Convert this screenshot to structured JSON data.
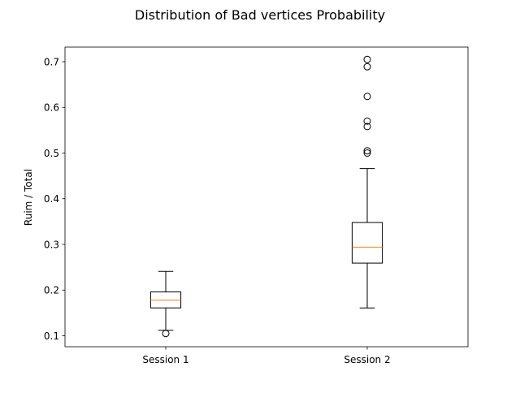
{
  "chart_data": {
    "type": "boxplot",
    "title": "Distribution of Bad vertices Probability",
    "xlabel": "",
    "ylabel": "Ruim / Total",
    "categories": [
      "Session 1",
      "Session 2"
    ],
    "yticks": [
      "0.1",
      "0.2",
      "0.3",
      "0.4",
      "0.5",
      "0.6",
      "0.7"
    ],
    "ylim": [
      0.076,
      0.732
    ],
    "grid": false,
    "legend": "none",
    "series": [
      {
        "whisker_low": 0.112,
        "q1": 0.161,
        "median": 0.178,
        "q3": 0.196,
        "whisker_high": 0.241,
        "outliers": [
          0.105
        ]
      },
      {
        "whisker_low": 0.161,
        "q1": 0.259,
        "median": 0.294,
        "q3": 0.348,
        "whisker_high": 0.466,
        "outliers": [
          0.5,
          0.505,
          0.558,
          0.57,
          0.624,
          0.689,
          0.705
        ]
      }
    ],
    "colors": {
      "box": "#000000",
      "median": "#ff7f0e",
      "outlier_edge": "#000000"
    }
  }
}
